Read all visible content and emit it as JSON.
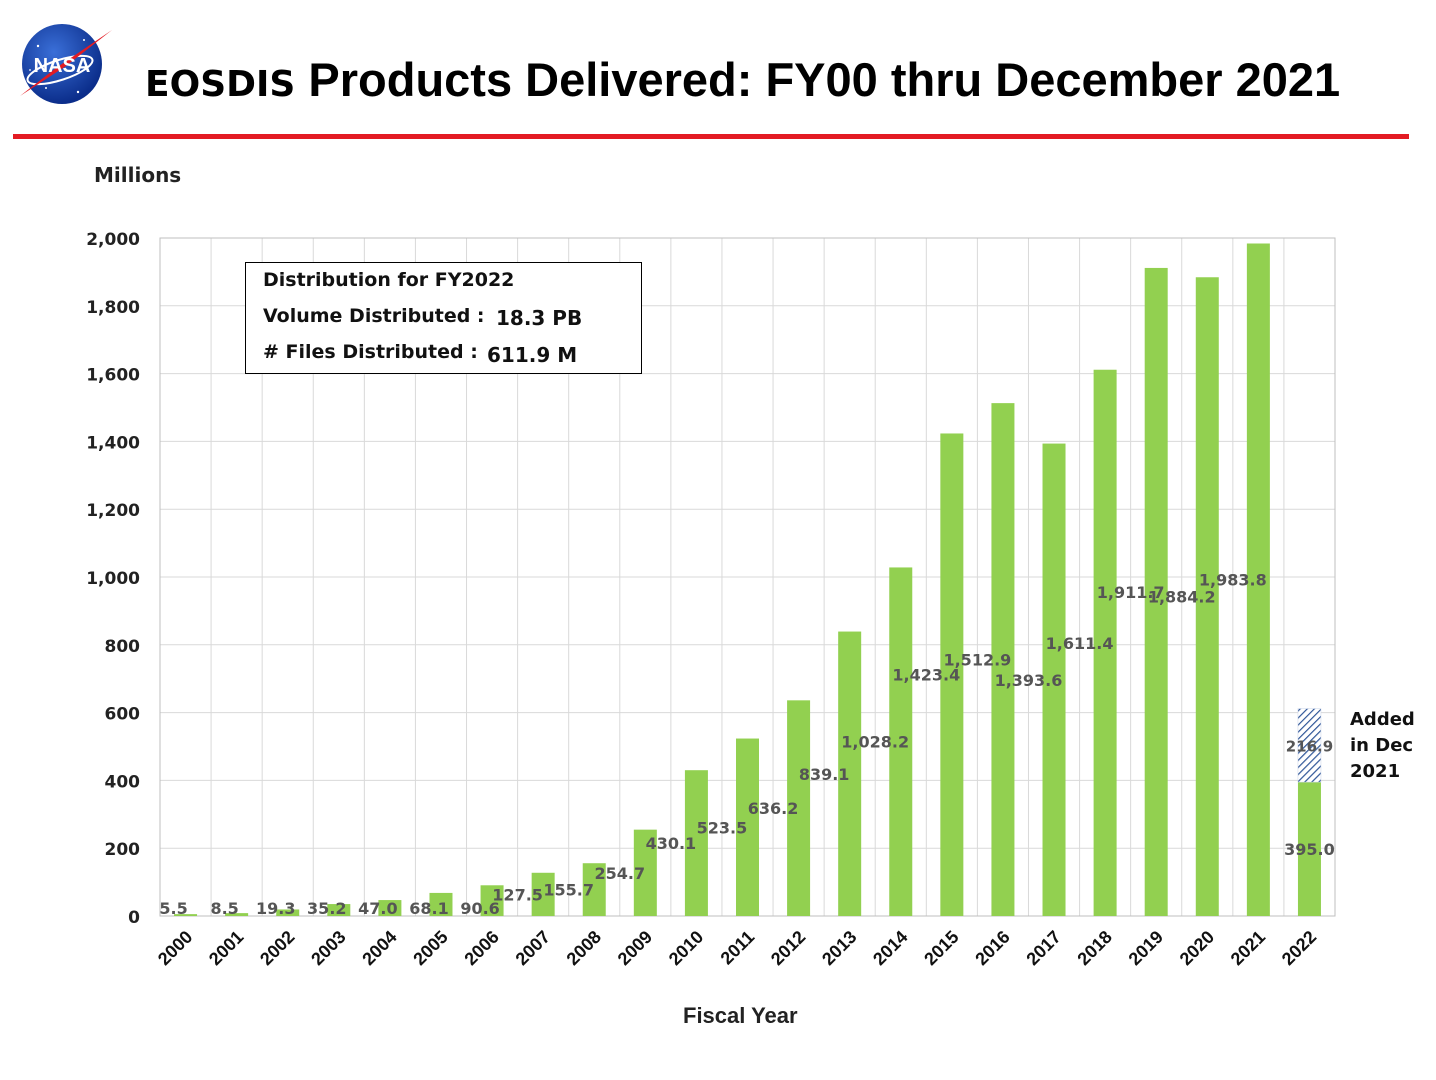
{
  "header": {
    "logo_text": "NASA",
    "title_part1": "EOSDIS",
    "title_part2": " Products Delivered: FY00 thru December 2021"
  },
  "info_box": {
    "line1": "Distribution for FY2022",
    "line2_label": "Volume Distributed :",
    "line2_value": "18.3 PB",
    "line3_label": "# Files Distributed :",
    "line3_value": "611.9 M"
  },
  "annotation": {
    "line1": "Added",
    "line2": "in Dec",
    "line3": "2021"
  },
  "colors": {
    "bar": "#92d050",
    "hatch": "#2e5597",
    "rule": "#e31b23",
    "grid": "#d9d9d9"
  },
  "chart_data": {
    "type": "bar",
    "stacked": true,
    "ylabel": "Millions",
    "xlabel": "Fiscal Year",
    "ylim": [
      0,
      2000
    ],
    "yticks": [
      0,
      200,
      400,
      600,
      800,
      1000,
      1200,
      1400,
      1600,
      1800,
      2000
    ],
    "ytick_labels": [
      "0",
      "200",
      "400",
      "600",
      "800",
      "1,000",
      "1,200",
      "1,400",
      "1,600",
      "1,800",
      "2,000"
    ],
    "grid": true,
    "legend": "none",
    "categories": [
      "2000",
      "2001",
      "2002",
      "2003",
      "2004",
      "2005",
      "2006",
      "2007",
      "2008",
      "2009",
      "2010",
      "2011",
      "2012",
      "2013",
      "2014",
      "2015",
      "2016",
      "2017",
      "2018",
      "2019",
      "2020",
      "2021",
      "2022"
    ],
    "series": [
      {
        "style": "solid",
        "values": [
          5.5,
          8.5,
          19.3,
          35.2,
          47.0,
          68.1,
          90.6,
          127.5,
          155.7,
          254.7,
          430.1,
          523.5,
          636.2,
          839.1,
          1028.2,
          1423.4,
          1512.9,
          1393.6,
          1611.4,
          1911.7,
          1884.2,
          1983.8,
          395.0
        ],
        "labels": [
          "5.5",
          "8.5",
          "19.3",
          "35.2",
          "47.0",
          "68.1",
          "90.6",
          "127.5",
          "155.7",
          "254.7",
          "430.1",
          "523.5",
          "636.2",
          "839.1",
          "1,028.2",
          "1,423.4",
          "1,512.9",
          "1,393.6",
          "1,611.4",
          "1,911.7",
          "1,884.2",
          "1,983.8",
          "395.0"
        ]
      },
      {
        "style": "hatched",
        "values": [
          0,
          0,
          0,
          0,
          0,
          0,
          0,
          0,
          0,
          0,
          0,
          0,
          0,
          0,
          0,
          0,
          0,
          0,
          0,
          0,
          0,
          0,
          216.9
        ],
        "labels": [
          "",
          "",
          "",
          "",
          "",
          "",
          "",
          "",
          "",
          "",
          "",
          "",
          "",
          "",
          "",
          "",
          "",
          "",
          "",
          "",
          "",
          "",
          "216.9"
        ]
      }
    ]
  }
}
